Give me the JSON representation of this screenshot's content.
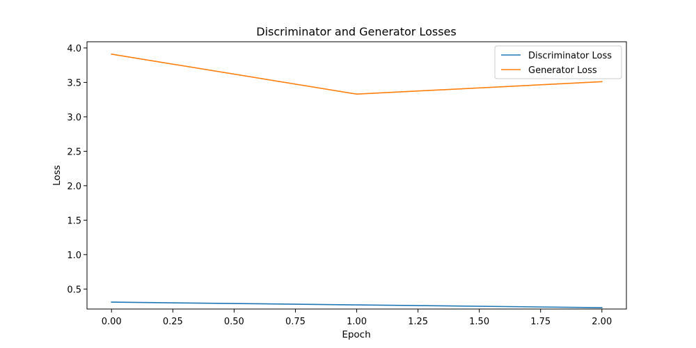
{
  "chart_data": {
    "type": "line",
    "title": "Discriminator and Generator Losses",
    "xlabel": "Epoch",
    "ylabel": "Loss",
    "x": [
      0,
      1,
      2
    ],
    "xlim": [
      -0.1,
      2.1
    ],
    "ylim": [
      0.21,
      4.09
    ],
    "xticks": [
      0.0,
      0.25,
      0.5,
      0.75,
      1.0,
      1.25,
      1.5,
      1.75,
      2.0
    ],
    "xtick_labels": [
      "0.00",
      "0.25",
      "0.50",
      "0.75",
      "1.00",
      "1.25",
      "1.50",
      "1.75",
      "2.00"
    ],
    "yticks": [
      0.5,
      1.0,
      1.5,
      2.0,
      2.5,
      3.0,
      3.5,
      4.0
    ],
    "ytick_labels": [
      "0.5",
      "1.0",
      "1.5",
      "2.0",
      "2.5",
      "3.0",
      "3.5",
      "4.0"
    ],
    "grid": false,
    "legend_position": "top-right",
    "series": [
      {
        "name": "Discriminator Loss",
        "values": [
          0.31,
          0.27,
          0.23
        ],
        "color": "#1f77b4"
      },
      {
        "name": "Generator Loss",
        "values": [
          3.91,
          3.33,
          3.51
        ],
        "color": "#ff7f0e"
      }
    ]
  }
}
